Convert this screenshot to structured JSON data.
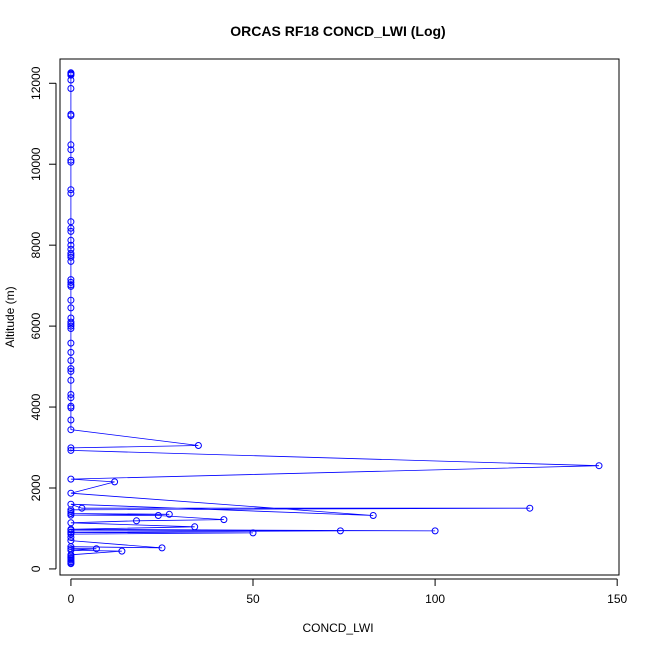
{
  "chart_data": {
    "type": "line",
    "title": "ORCAS RF18 CONCD_LWI (Log)",
    "xlabel": "CONCD_LWI",
    "ylabel": "Altitude (m)",
    "xlim": [
      -3,
      150.5
    ],
    "ylim": [
      -150,
      12600
    ],
    "xticks": [
      0,
      50,
      100,
      150
    ],
    "yticks": [
      0,
      2000,
      4000,
      6000,
      8000,
      10000,
      12000
    ],
    "color": "#0000ff",
    "marker": "open-circle",
    "grid": false,
    "series": [
      {
        "points": [
          [
            0,
            12260
          ],
          [
            0,
            12240
          ],
          [
            0,
            12220
          ],
          [
            0,
            12200
          ],
          [
            0,
            12080
          ],
          [
            0,
            11870
          ],
          [
            0,
            11230
          ],
          [
            0,
            11200
          ],
          [
            0,
            10480
          ],
          [
            0,
            10360
          ],
          [
            0,
            10100
          ],
          [
            0,
            10050
          ],
          [
            0,
            9370
          ],
          [
            0,
            9280
          ],
          [
            0,
            8580
          ],
          [
            0,
            8420
          ],
          [
            0,
            8340
          ],
          [
            0,
            8120
          ],
          [
            0,
            8000
          ],
          [
            0,
            7900
          ],
          [
            0,
            7800
          ],
          [
            0,
            7750
          ],
          [
            0,
            7700
          ],
          [
            0,
            7600
          ],
          [
            0,
            7150
          ],
          [
            0,
            7080
          ],
          [
            0,
            7020
          ],
          [
            0,
            6980
          ],
          [
            0,
            6640
          ],
          [
            0,
            6450
          ],
          [
            0,
            6200
          ],
          [
            0,
            6100
          ],
          [
            0,
            6050
          ],
          [
            0,
            6000
          ],
          [
            0,
            5940
          ],
          [
            0,
            5580
          ],
          [
            0,
            5350
          ],
          [
            0,
            5150
          ],
          [
            0,
            4950
          ],
          [
            0,
            4880
          ],
          [
            0,
            4660
          ],
          [
            0,
            4310
          ],
          [
            0,
            4230
          ],
          [
            0,
            4020
          ],
          [
            0,
            3980
          ],
          [
            0,
            3680
          ],
          [
            0,
            3440
          ],
          [
            35,
            3050
          ],
          [
            0,
            2990
          ],
          [
            0,
            2930
          ],
          [
            145,
            2550
          ],
          [
            0,
            2220
          ],
          [
            12,
            2150
          ],
          [
            0,
            1870
          ],
          [
            83,
            1320
          ],
          [
            0,
            1600
          ],
          [
            3,
            1500
          ],
          [
            126,
            1500
          ],
          [
            0,
            1460
          ],
          [
            0,
            1420
          ],
          [
            0,
            1370
          ],
          [
            27,
            1350
          ],
          [
            0,
            1330
          ],
          [
            24,
            1320
          ],
          [
            42,
            1220
          ],
          [
            18,
            1190
          ],
          [
            0,
            1140
          ],
          [
            34,
            1040
          ],
          [
            0,
            980
          ],
          [
            100,
            940
          ],
          [
            0,
            960
          ],
          [
            74,
            940
          ],
          [
            0,
            910
          ],
          [
            0,
            900
          ],
          [
            50,
            890
          ],
          [
            0,
            860
          ],
          [
            0,
            780
          ],
          [
            0,
            700
          ],
          [
            25,
            520
          ],
          [
            0,
            550
          ],
          [
            0,
            500
          ],
          [
            7,
            500
          ],
          [
            0,
            460
          ],
          [
            14,
            440
          ],
          [
            0,
            350
          ],
          [
            0,
            320
          ],
          [
            0,
            280
          ],
          [
            0,
            250
          ],
          [
            0,
            220
          ],
          [
            0,
            180
          ],
          [
            0,
            150
          ],
          [
            0,
            130
          ]
        ]
      }
    ]
  }
}
